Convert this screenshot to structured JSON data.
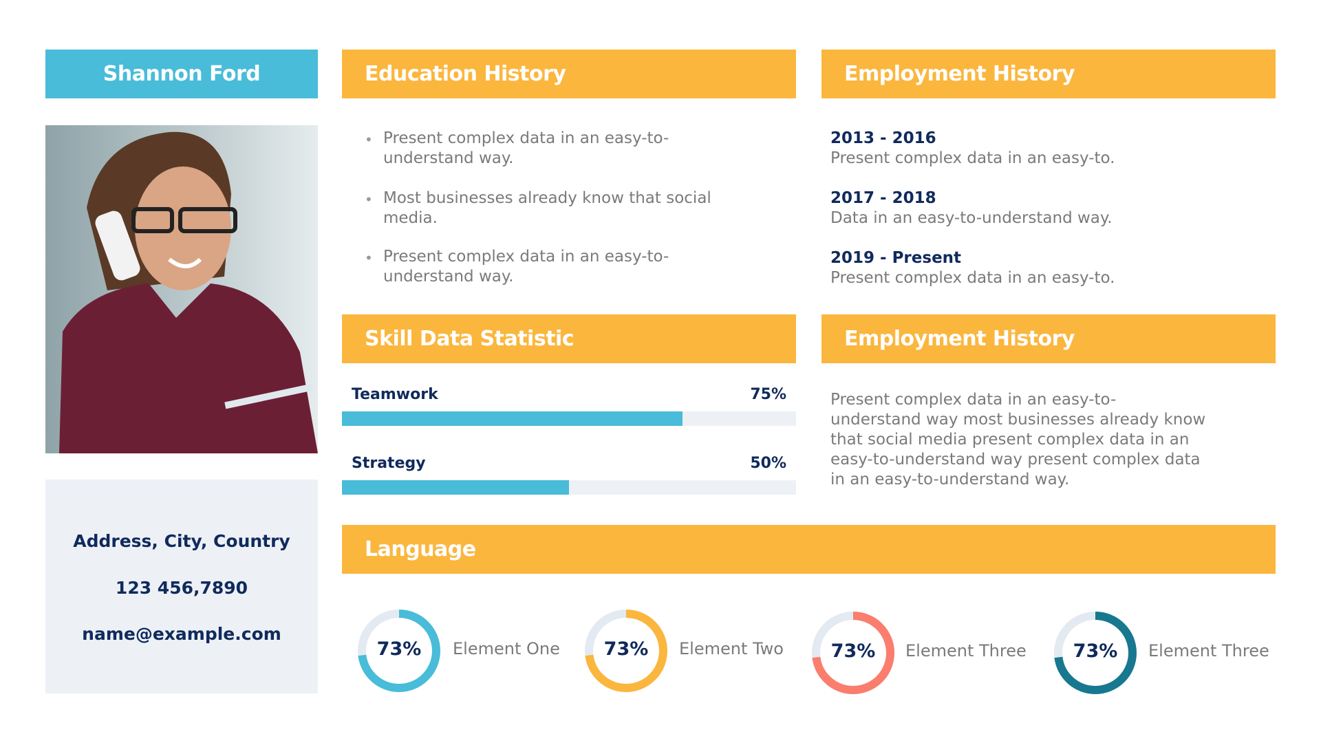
{
  "name": "Shannon Ford",
  "contact": {
    "address": "Address, City, Country",
    "phone": "123 456,7890",
    "email": "name@example.com"
  },
  "education": {
    "title": "Education History",
    "items": [
      "Present complex data in an easy-to-\nunderstand way.",
      "Most businesses already know that social\nmedia.",
      "Present complex data in an easy-to-\nunderstand way."
    ]
  },
  "employment": {
    "title": "Employment History",
    "items": [
      {
        "years": "2013 - 2016",
        "desc": "Present complex data in an easy-to."
      },
      {
        "years": "2017 - 2018",
        "desc": "Data in an easy-to-understand way."
      },
      {
        "years": "2019 - Present",
        "desc": "Present complex data in an easy-to."
      }
    ]
  },
  "skills": {
    "title": "Skill Data Statistic",
    "items": [
      {
        "label": "Teamwork",
        "percent_label": "75%",
        "value": 75
      },
      {
        "label": "Strategy",
        "percent_label": "50%",
        "value": 50
      }
    ]
  },
  "employment2": {
    "title": "Employment History",
    "text": "Present complex data in an easy-to-\nunderstand way most businesses already know\nthat social media present complex data in an\neasy-to-understand way present complex data\nin an easy-to-understand way."
  },
  "language": {
    "title": "Language",
    "items": [
      {
        "label": "Element One",
        "percent_label": "73%",
        "value": 73,
        "color": "#48bcd8"
      },
      {
        "label": "Element Two",
        "percent_label": "73%",
        "value": 73,
        "color": "#fbb63e"
      },
      {
        "label": "Element Three",
        "percent_label": "73%",
        "value": 73,
        "color": "#fb7d6e"
      },
      {
        "label": "Element Three",
        "percent_label": "73%",
        "value": 73,
        "color": "#17788f"
      }
    ]
  },
  "colors": {
    "accent_orange": "#fbb63e",
    "accent_blue": "#48bcd8",
    "navy": "#102a5c",
    "track": "#edf1f6"
  }
}
